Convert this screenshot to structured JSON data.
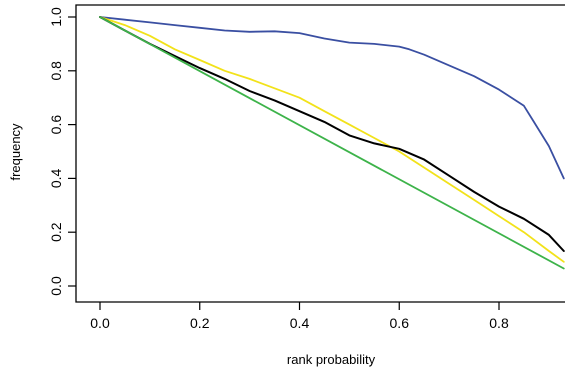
{
  "chart_data": {
    "type": "line",
    "title": "",
    "xlabel": "rank probability",
    "ylabel": "frequency",
    "xlim": [
      0.0,
      0.93
    ],
    "ylim": [
      0.0,
      1.0
    ],
    "xticks": [
      0.0,
      0.2,
      0.4,
      0.6,
      0.8
    ],
    "xtick_labels": [
      "0.0",
      "0.2",
      "0.4",
      "0.6",
      "0.8"
    ],
    "yticks": [
      0.0,
      0.2,
      0.4,
      0.6,
      0.8,
      1.0
    ],
    "ytick_labels": [
      "0.0",
      "0.2",
      "0.4",
      "0.6",
      "0.8",
      "1.0"
    ],
    "grid": false,
    "legend": "none",
    "series": [
      {
        "color": "#3a4fa2",
        "x": [
          0.0,
          0.05,
          0.1,
          0.15,
          0.2,
          0.25,
          0.3,
          0.35,
          0.4,
          0.45,
          0.5,
          0.55,
          0.6,
          0.62,
          0.65,
          0.7,
          0.75,
          0.8,
          0.85,
          0.87,
          0.9,
          0.93
        ],
        "y": [
          1.0,
          0.99,
          0.98,
          0.97,
          0.96,
          0.95,
          0.945,
          0.947,
          0.94,
          0.92,
          0.905,
          0.9,
          0.89,
          0.88,
          0.86,
          0.82,
          0.78,
          0.73,
          0.67,
          0.61,
          0.52,
          0.4
        ]
      },
      {
        "color": "#f2e21a",
        "x": [
          0.0,
          0.05,
          0.1,
          0.15,
          0.2,
          0.25,
          0.3,
          0.35,
          0.4,
          0.45,
          0.5,
          0.55,
          0.6,
          0.65,
          0.7,
          0.75,
          0.8,
          0.85,
          0.9,
          0.93
        ],
        "y": [
          1.0,
          0.97,
          0.93,
          0.88,
          0.84,
          0.8,
          0.77,
          0.735,
          0.7,
          0.65,
          0.6,
          0.55,
          0.5,
          0.44,
          0.38,
          0.32,
          0.26,
          0.2,
          0.13,
          0.09
        ]
      },
      {
        "color": "#000000",
        "x": [
          0.0,
          0.05,
          0.1,
          0.15,
          0.2,
          0.25,
          0.3,
          0.35,
          0.4,
          0.45,
          0.5,
          0.55,
          0.6,
          0.65,
          0.7,
          0.75,
          0.8,
          0.85,
          0.9,
          0.93
        ],
        "y": [
          1.0,
          0.95,
          0.9,
          0.855,
          0.81,
          0.77,
          0.725,
          0.69,
          0.65,
          0.61,
          0.56,
          0.53,
          0.51,
          0.47,
          0.41,
          0.35,
          0.295,
          0.25,
          0.19,
          0.13
        ]
      },
      {
        "color": "#3db34a",
        "x": [
          0.0,
          0.93
        ],
        "y": [
          1.0,
          0.065
        ]
      }
    ]
  }
}
